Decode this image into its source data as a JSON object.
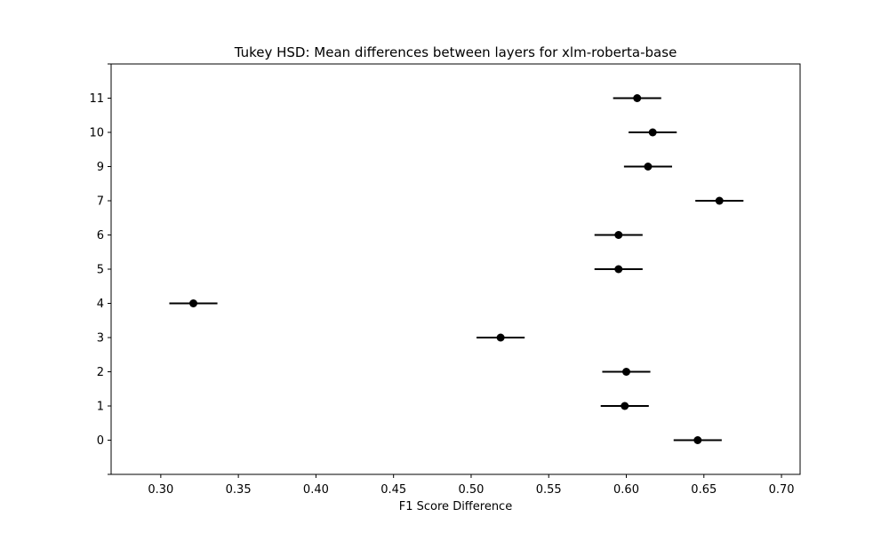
{
  "chart_data": {
    "type": "scatter",
    "title": "Tukey HSD: Mean differences between layers for xlm-roberta-base",
    "xlabel": "F1 Score Difference",
    "ylabel": "",
    "xlim": [
      0.268,
      0.712
    ],
    "x_ticks": [
      0.3,
      0.35,
      0.4,
      0.45,
      0.5,
      0.55,
      0.6,
      0.65,
      0.7
    ],
    "x_tick_labels": [
      "0.30",
      "0.35",
      "0.40",
      "0.45",
      "0.50",
      "0.55",
      "0.60",
      "0.65",
      "0.70"
    ],
    "categories": [
      "0",
      "1",
      "2",
      "3",
      "4",
      "5",
      "6",
      "7",
      "9",
      "10",
      "11"
    ],
    "means": [
      0.646,
      0.599,
      0.6,
      0.519,
      0.321,
      0.595,
      0.595,
      0.66,
      0.614,
      0.617,
      0.607
    ],
    "half_widths": [
      0.0155,
      0.0155,
      0.0155,
      0.0155,
      0.0155,
      0.0155,
      0.0155,
      0.0155,
      0.0155,
      0.0155,
      0.0155
    ],
    "grid": false,
    "legend": "none",
    "marker_color": "#000000",
    "errorbar_color": "#000000"
  }
}
